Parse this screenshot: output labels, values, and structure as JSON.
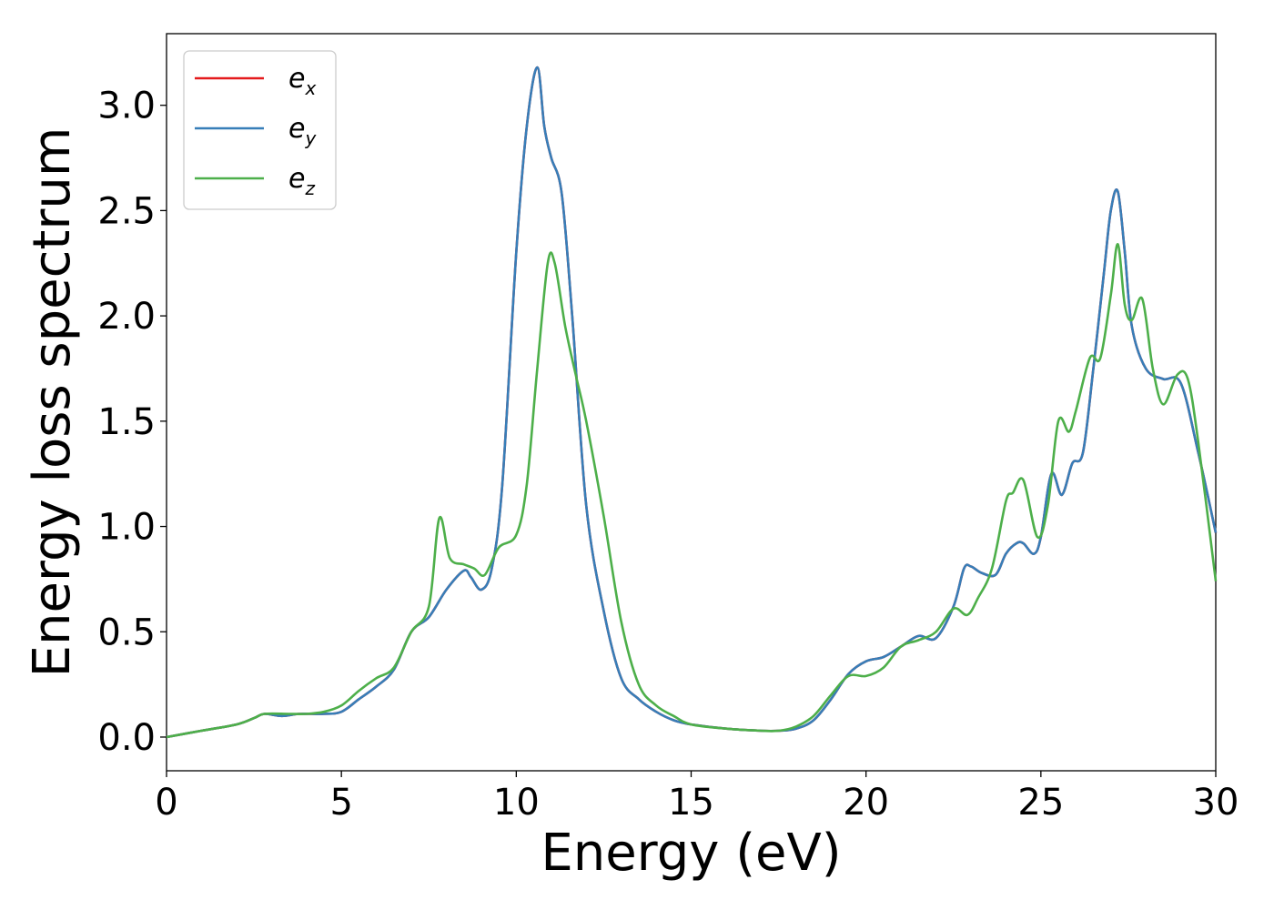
{
  "chart_data": {
    "type": "line",
    "xlabel": "Energy (eV)",
    "ylabel": "Energy loss spectrum",
    "xlim": [
      0,
      30
    ],
    "ylim": [
      -0.16,
      3.34
    ],
    "xticks": [
      0,
      5,
      10,
      15,
      20,
      25,
      30
    ],
    "xtick_labels": [
      "0",
      "5",
      "10",
      "15",
      "20",
      "25",
      "30"
    ],
    "yticks": [
      0.0,
      0.5,
      1.0,
      1.5,
      2.0,
      2.5,
      3.0
    ],
    "ytick_labels": [
      "0.0",
      "0.5",
      "1.0",
      "1.5",
      "2.0",
      "2.5",
      "3.0"
    ],
    "grid": false,
    "legend_position": "upper-left",
    "series": [
      {
        "name": "e",
        "subscript": "x",
        "color": "#e41a1c",
        "x": [
          0,
          1,
          2,
          2.5,
          2.8,
          3.3,
          3.8,
          4.5,
          5,
          5.5,
          6,
          6.5,
          7,
          7.5,
          8,
          8.5,
          8.7,
          9,
          9.3,
          9.6,
          10,
          10.3,
          10.6,
          10.8,
          11,
          11.3,
          11.6,
          12,
          12.5,
          13,
          13.5,
          14,
          14.5,
          15,
          16,
          17,
          17.5,
          18,
          18.5,
          19,
          19.5,
          20,
          20.5,
          21,
          21.5,
          22,
          22.5,
          22.8,
          23,
          23.3,
          23.7,
          24,
          24.3,
          24.5,
          24.8,
          25,
          25.3,
          25.6,
          25.9,
          26.2,
          26.5,
          26.8,
          27,
          27.2,
          27.4,
          27.6,
          28,
          28.5,
          29,
          29.5,
          30
        ],
        "y": [
          0.0,
          0.03,
          0.06,
          0.09,
          0.11,
          0.1,
          0.11,
          0.11,
          0.12,
          0.18,
          0.24,
          0.32,
          0.5,
          0.57,
          0.7,
          0.79,
          0.76,
          0.7,
          0.8,
          1.2,
          2.3,
          2.9,
          3.18,
          2.9,
          2.75,
          2.58,
          2.0,
          1.1,
          0.6,
          0.28,
          0.18,
          0.12,
          0.08,
          0.06,
          0.04,
          0.03,
          0.03,
          0.04,
          0.08,
          0.18,
          0.3,
          0.36,
          0.38,
          0.43,
          0.48,
          0.47,
          0.62,
          0.8,
          0.81,
          0.78,
          0.77,
          0.87,
          0.92,
          0.92,
          0.87,
          0.95,
          1.25,
          1.15,
          1.3,
          1.35,
          1.75,
          2.2,
          2.5,
          2.59,
          2.3,
          1.95,
          1.75,
          1.7,
          1.68,
          1.35,
          0.97
        ]
      },
      {
        "name": "e",
        "subscript": "y",
        "color": "#377eb8",
        "x": [
          0,
          1,
          2,
          2.5,
          2.8,
          3.3,
          3.8,
          4.5,
          5,
          5.5,
          6,
          6.5,
          7,
          7.5,
          8,
          8.5,
          8.7,
          9,
          9.3,
          9.6,
          10,
          10.3,
          10.6,
          10.8,
          11,
          11.3,
          11.6,
          12,
          12.5,
          13,
          13.5,
          14,
          14.5,
          15,
          16,
          17,
          17.5,
          18,
          18.5,
          19,
          19.5,
          20,
          20.5,
          21,
          21.5,
          22,
          22.5,
          22.8,
          23,
          23.3,
          23.7,
          24,
          24.3,
          24.5,
          24.8,
          25,
          25.3,
          25.6,
          25.9,
          26.2,
          26.5,
          26.8,
          27,
          27.2,
          27.4,
          27.6,
          28,
          28.5,
          29,
          29.5,
          30
        ],
        "y": [
          0.0,
          0.03,
          0.06,
          0.09,
          0.11,
          0.1,
          0.11,
          0.11,
          0.12,
          0.18,
          0.24,
          0.32,
          0.5,
          0.57,
          0.7,
          0.79,
          0.76,
          0.7,
          0.8,
          1.2,
          2.3,
          2.9,
          3.18,
          2.9,
          2.75,
          2.58,
          2.0,
          1.1,
          0.6,
          0.28,
          0.18,
          0.12,
          0.08,
          0.06,
          0.04,
          0.03,
          0.03,
          0.04,
          0.08,
          0.18,
          0.3,
          0.36,
          0.38,
          0.43,
          0.48,
          0.47,
          0.62,
          0.8,
          0.81,
          0.78,
          0.77,
          0.87,
          0.92,
          0.92,
          0.87,
          0.95,
          1.25,
          1.15,
          1.3,
          1.35,
          1.75,
          2.2,
          2.5,
          2.59,
          2.3,
          1.95,
          1.75,
          1.7,
          1.68,
          1.35,
          0.97
        ]
      },
      {
        "name": "e",
        "subscript": "z",
        "color": "#4daf4a",
        "x": [
          0,
          1,
          2,
          2.5,
          2.8,
          3.5,
          4,
          4.5,
          5,
          5.5,
          6,
          6.5,
          7,
          7.5,
          7.8,
          8.1,
          8.5,
          8.8,
          9.1,
          9.5,
          10,
          10.3,
          10.6,
          10.9,
          11.1,
          11.4,
          11.7,
          12,
          12.5,
          13,
          13.5,
          14,
          14.5,
          15,
          16,
          17,
          17.5,
          18,
          18.5,
          19,
          19.5,
          20,
          20.5,
          21,
          21.5,
          22,
          22.5,
          22.9,
          23.2,
          23.6,
          24,
          24.2,
          24.5,
          24.9,
          25.2,
          25.5,
          25.8,
          26,
          26.4,
          26.7,
          27,
          27.2,
          27.4,
          27.6,
          27.9,
          28.2,
          28.5,
          28.9,
          29.2,
          29.5,
          30
        ],
        "y": [
          0.0,
          0.03,
          0.06,
          0.09,
          0.11,
          0.11,
          0.11,
          0.12,
          0.15,
          0.22,
          0.28,
          0.33,
          0.5,
          0.62,
          1.04,
          0.85,
          0.82,
          0.8,
          0.77,
          0.9,
          0.96,
          1.2,
          1.75,
          2.25,
          2.25,
          1.95,
          1.72,
          1.5,
          1.05,
          0.55,
          0.25,
          0.15,
          0.1,
          0.06,
          0.04,
          0.03,
          0.03,
          0.05,
          0.1,
          0.2,
          0.29,
          0.29,
          0.33,
          0.43,
          0.46,
          0.5,
          0.61,
          0.58,
          0.66,
          0.8,
          1.12,
          1.16,
          1.22,
          0.95,
          1.1,
          1.5,
          1.45,
          1.55,
          1.8,
          1.8,
          2.1,
          2.34,
          2.05,
          1.98,
          2.08,
          1.75,
          1.58,
          1.72,
          1.7,
          1.4,
          0.74
        ]
      }
    ]
  }
}
